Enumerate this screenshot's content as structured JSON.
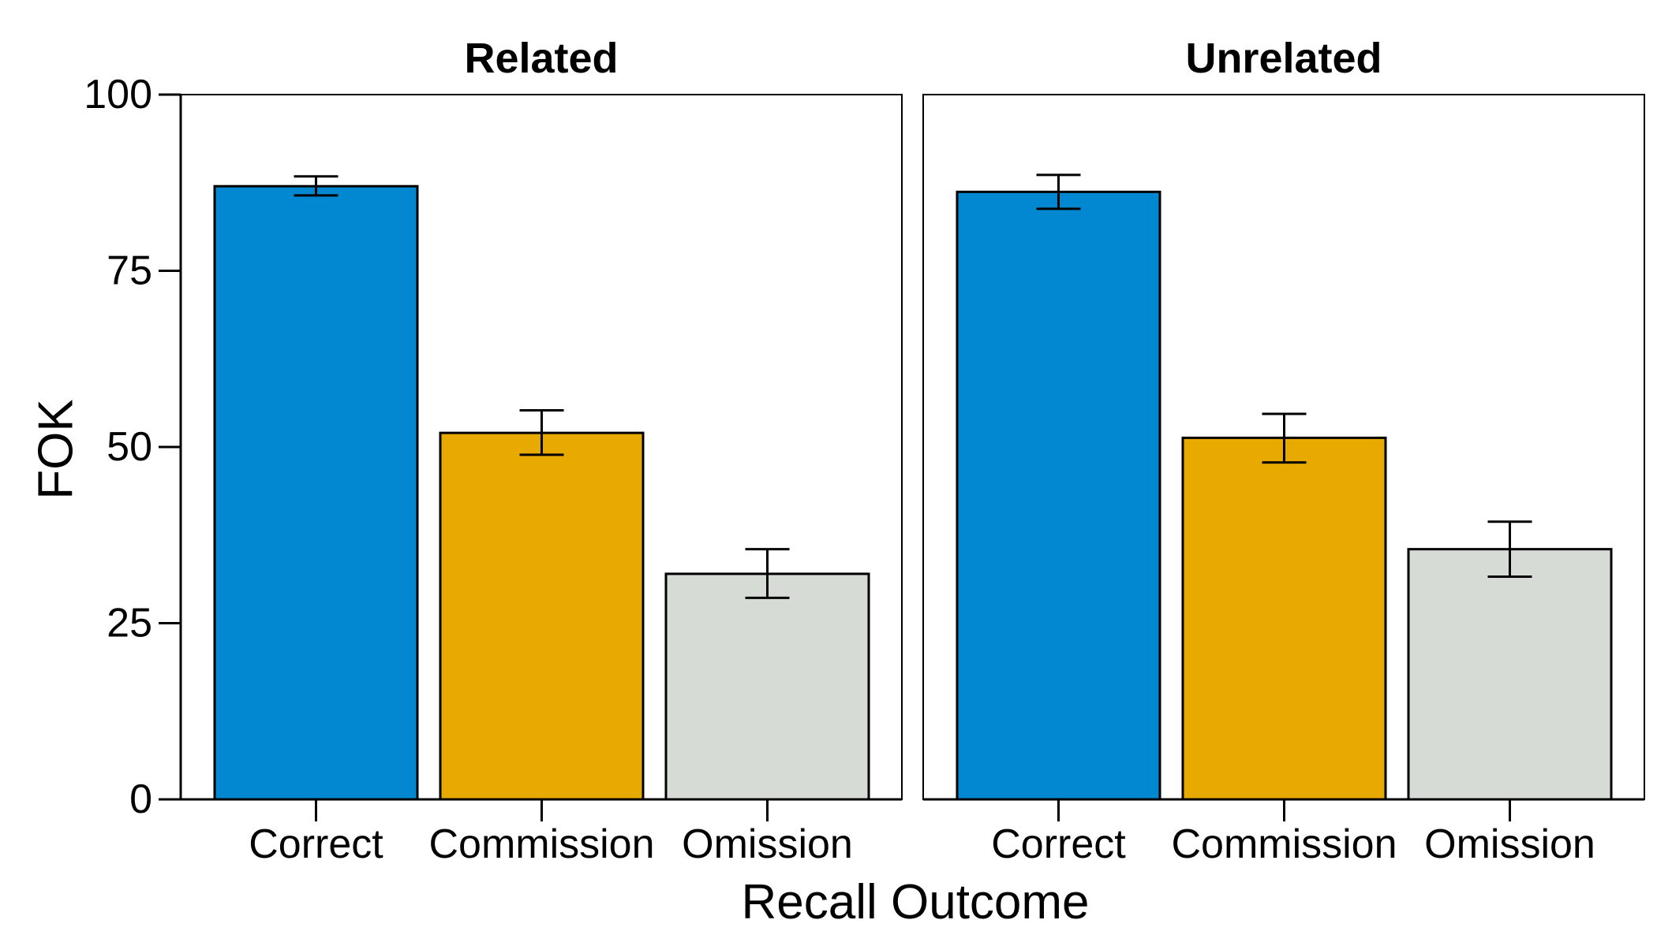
{
  "chart_data": {
    "type": "bar",
    "ylabel": "FOK",
    "xlabel": "Recall Outcome",
    "ylim": [
      0,
      100
    ],
    "yticks": [
      "0",
      "25",
      "50",
      "75",
      "100"
    ],
    "categories": [
      "Correct",
      "Commission",
      "Omission"
    ],
    "colors": [
      "#0288d1",
      "#e9aa00",
      "#d6dbd5"
    ],
    "panels": [
      {
        "title": "Related",
        "values": [
          87.0,
          52.0,
          32.0
        ],
        "error_low": [
          85.7,
          48.9,
          28.6
        ],
        "error_high": [
          88.4,
          55.2,
          35.5
        ]
      },
      {
        "title": "Unrelated",
        "values": [
          86.2,
          51.3,
          35.5
        ],
        "error_low": [
          83.8,
          47.8,
          31.6
        ],
        "error_high": [
          88.6,
          54.7,
          39.4
        ]
      }
    ]
  }
}
